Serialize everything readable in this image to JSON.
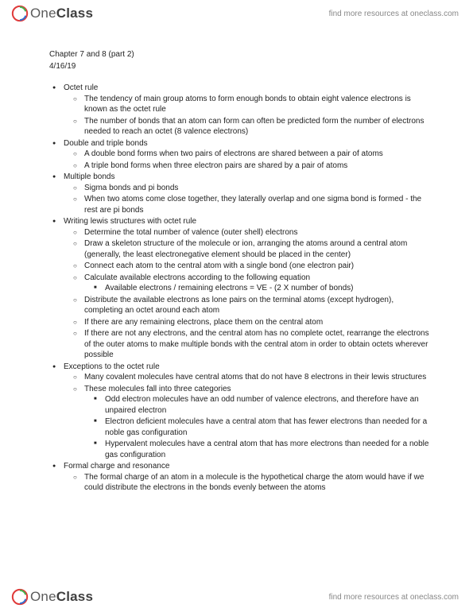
{
  "brand": {
    "one": "One",
    "class": "Class",
    "tagline": "find more resources at oneclass.com"
  },
  "title": "Chapter 7 and 8 (part 2)",
  "date": "4/16/19",
  "sections": [
    {
      "heading": "Octet rule",
      "items": [
        {
          "text": "The tendency of main group atoms to form enough bonds to obtain eight valence electrons is known as the octet rule"
        },
        {
          "text": "The number of bonds that an atom can form can often be predicted form the number of electrons needed to reach an octet (8 valence electrons)"
        }
      ]
    },
    {
      "heading": "Double and triple bonds",
      "items": [
        {
          "text": "A double bond forms when two pairs of electrons are shared between a pair of atoms"
        },
        {
          "text": "A triple bond forms when three electron pairs are shared by a pair of atoms"
        }
      ]
    },
    {
      "heading": "Multiple bonds",
      "items": [
        {
          "text": "Sigma bonds and pi bonds"
        },
        {
          "text": "When two atoms come close together, they laterally overlap and one sigma bond is formed - the rest are pi bonds"
        }
      ]
    },
    {
      "heading": "Writing lewis structures with octet rule",
      "items": [
        {
          "text": "Determine the total number of valence (outer shell) electrons"
        },
        {
          "text": "Draw a skeleton structure of the molecule or ion, arranging the atoms around a central atom (generally, the least electronegative element should be placed in the center)"
        },
        {
          "text": "Connect each atom to the central atom with a single bond (one electron pair)"
        },
        {
          "text": "Calculate available electrons according to the following equation",
          "sub": [
            "Available electrons / remaining electrons = VE - (2 X number of bonds)"
          ]
        },
        {
          "text": "Distribute the available electrons as lone pairs on the terminal atoms (except hydrogen), completing an octet around each atom"
        },
        {
          "text": "If there are any remaining electrons, place them on the central atom"
        },
        {
          "text": "If there are not any electrons, and the central atom has no complete octet, rearrange the electrons of the outer atoms to make multiple bonds with the central atom in order to obtain octets wherever possible"
        }
      ]
    },
    {
      "heading": "Exceptions to the octet rule",
      "items": [
        {
          "text": "Many covalent molecules have central atoms that do not have 8 electrons in their lewis structures"
        },
        {
          "text": "These molecules fall into three categories",
          "sub": [
            "Odd electron molecules have an odd number of valence electrons, and therefore have an unpaired electron",
            "Electron deficient molecules have a central atom that has fewer electrons than needed for a noble gas configuration",
            "Hypervalent molecules have a central atom that has more electrons than needed for a noble gas configuration"
          ]
        }
      ]
    },
    {
      "heading": "Formal charge and resonance",
      "items": [
        {
          "text": "The formal charge of an atom in a molecule is the hypothetical charge the atom would have if we could distribute the electrons in the bonds evenly between the atoms"
        }
      ]
    }
  ]
}
